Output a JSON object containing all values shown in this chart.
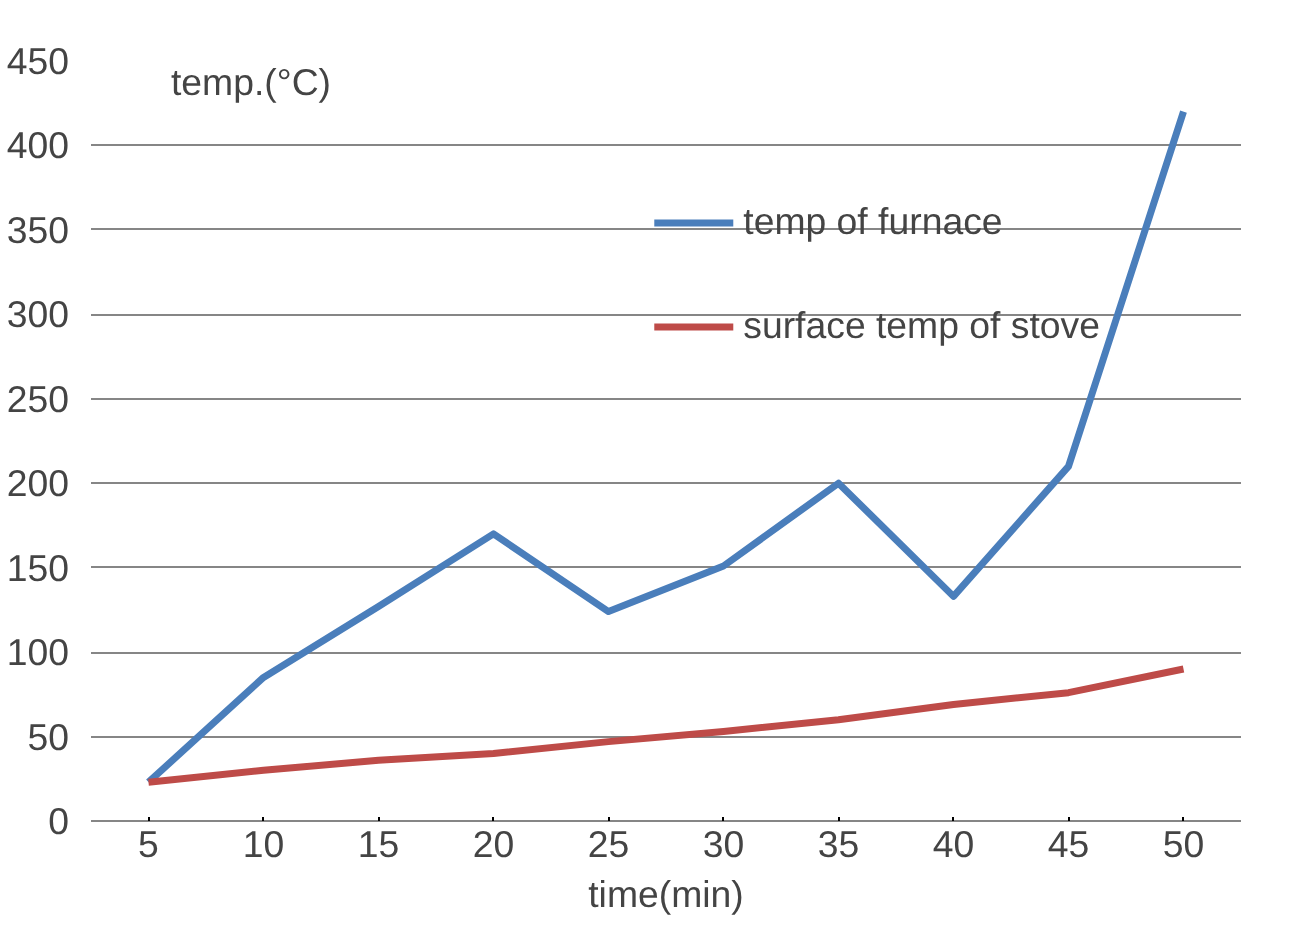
{
  "chart_data": {
    "type": "line",
    "xlabel": "time(min)",
    "ylabel": "temp.(°C)",
    "categories": [
      "5",
      "10",
      "15",
      "20",
      "25",
      "30",
      "35",
      "40",
      "45",
      "50"
    ],
    "series": [
      {
        "name": "temp of furnace",
        "color": "#4a7ebb",
        "values": [
          23,
          85,
          127,
          170,
          124,
          151,
          200,
          133,
          210,
          420
        ]
      },
      {
        "name": "surface temp of stove",
        "color": "#be4b48",
        "values": [
          23,
          30,
          36,
          40,
          47,
          53,
          60,
          69,
          76,
          90
        ]
      }
    ],
    "ylim": [
      0,
      450
    ],
    "yticks": [
      0,
      50,
      100,
      150,
      200,
      250,
      300,
      350,
      400,
      450
    ],
    "grid": "y",
    "legend": "top right",
    "marker": "none",
    "line_style": "solid"
  }
}
